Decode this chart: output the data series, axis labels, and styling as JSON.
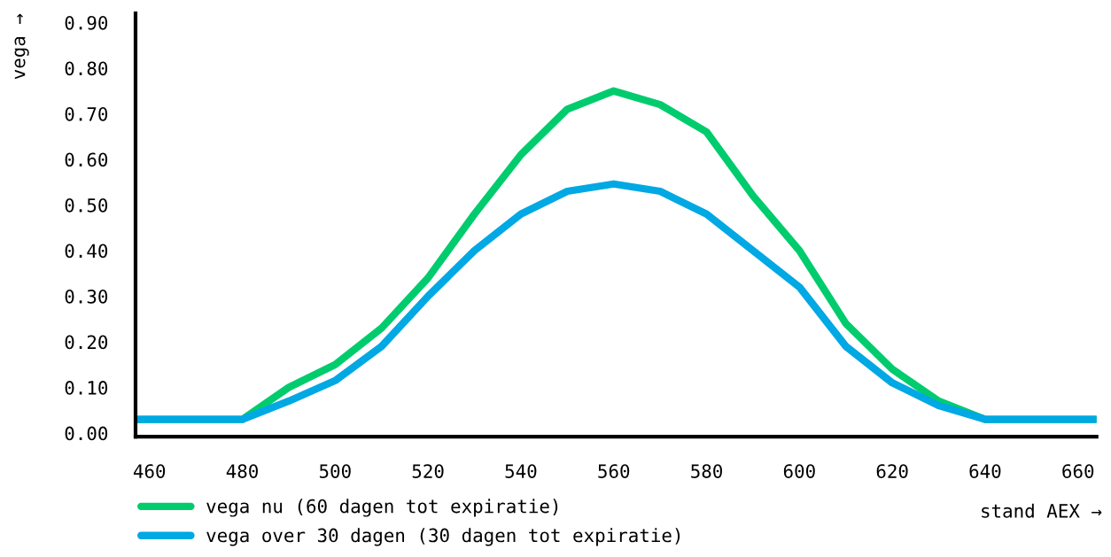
{
  "chart_data": {
    "type": "line",
    "ylabel": "vega →",
    "xlabel": "stand AEX →",
    "x": [
      457,
      480,
      490,
      500,
      510,
      520,
      530,
      540,
      550,
      560,
      570,
      580,
      590,
      600,
      610,
      620,
      630,
      640,
      664
    ],
    "series": [
      {
        "name": "vega nu (60 dagen tot expiratie)",
        "color": "#00cc6e",
        "values": [
          0.03,
          0.03,
          0.1,
          0.15,
          0.23,
          0.34,
          0.48,
          0.61,
          0.71,
          0.75,
          0.72,
          0.66,
          0.52,
          0.4,
          0.24,
          0.14,
          0.07,
          0.03,
          0.03
        ]
      },
      {
        "name": "vega over 30 dagen (30 dagen tot expiratie)",
        "color": "#00a8e4",
        "values": [
          0.03,
          0.03,
          0.07,
          0.115,
          0.19,
          0.3,
          0.4,
          0.48,
          0.53,
          0.546,
          0.53,
          0.48,
          0.4,
          0.32,
          0.19,
          0.11,
          0.06,
          0.03,
          0.03
        ]
      }
    ],
    "xlim": [
      457,
      664
    ],
    "ylim": [
      -0.008,
      0.92
    ],
    "xticks": [
      460,
      480,
      500,
      520,
      540,
      560,
      580,
      600,
      620,
      640,
      660
    ],
    "yticks": [
      {
        "value": 0,
        "label": "0.00"
      },
      {
        "value": 0.1,
        "label": "0.10"
      },
      {
        "value": 0.2,
        "label": "0.20"
      },
      {
        "value": 0.3,
        "label": "0.30"
      },
      {
        "value": 0.4,
        "label": "0.40"
      },
      {
        "value": 0.5,
        "label": "0.50"
      },
      {
        "value": 0.6,
        "label": "0.60"
      },
      {
        "value": 0.7,
        "label": "0.70"
      },
      {
        "value": 0.8,
        "label": "0.80"
      },
      {
        "value": 0.9,
        "label": "0.90"
      }
    ],
    "grid": false,
    "legend": "bottom left",
    "marker": "none",
    "line_style": "solid"
  }
}
